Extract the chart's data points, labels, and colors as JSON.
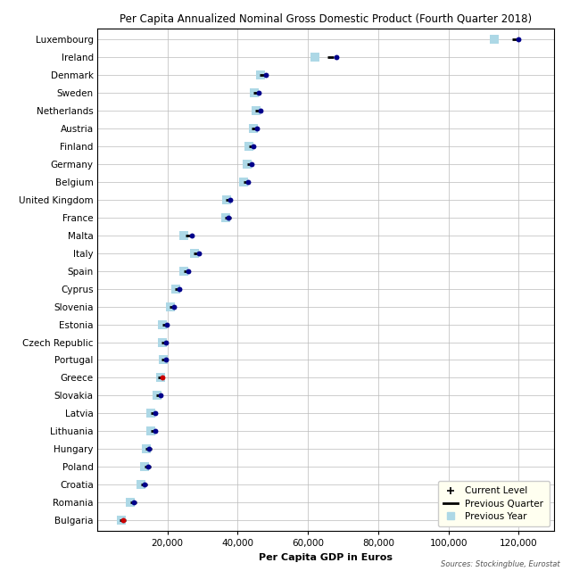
{
  "title": "Per Capita Annualized Nominal Gross Domestic Product (Fourth Quarter 2018)",
  "xlabel": "Per Capita GDP in Euros",
  "source": "Sources: Stockingblue, Eurostat",
  "countries": [
    "Luxembourg",
    "Ireland",
    "Denmark",
    "Sweden",
    "Netherlands",
    "Austria",
    "Finland",
    "Germany",
    "Belgium",
    "United Kingdom",
    "France",
    "Malta",
    "Italy",
    "Spain",
    "Cyprus",
    "Slovenia",
    "Estonia",
    "Czech Republic",
    "Portugal",
    "Greece",
    "Slovakia",
    "Latvia",
    "Lithuania",
    "Hungary",
    "Poland",
    "Croatia",
    "Romania",
    "Bulgaria"
  ],
  "current": [
    120000,
    68000,
    48000,
    46000,
    46500,
    45500,
    44500,
    44000,
    43000,
    38000,
    37500,
    27000,
    29000,
    26000,
    23500,
    22000,
    19800,
    19500,
    19500,
    18500,
    18000,
    16500,
    16500,
    14800,
    14500,
    13500,
    10500,
    7500
  ],
  "prev_quarter": [
    119000,
    66500,
    47200,
    45500,
    46000,
    45000,
    44200,
    43500,
    42500,
    37500,
    37200,
    26200,
    28300,
    25500,
    23000,
    21500,
    19400,
    19200,
    19200,
    18300,
    17700,
    16200,
    16200,
    14600,
    14300,
    13300,
    10300,
    7300
  ],
  "prev_year": [
    113000,
    62000,
    46500,
    44800,
    45200,
    44500,
    43200,
    42800,
    41800,
    36800,
    36500,
    24800,
    27800,
    24800,
    22500,
    20800,
    18500,
    18500,
    18800,
    18000,
    17000,
    15200,
    15200,
    14000,
    13500,
    12500,
    9500,
    7000
  ],
  "dot_colors": [
    "#00008B",
    "#00008B",
    "#00008B",
    "#00008B",
    "#00008B",
    "#00008B",
    "#00008B",
    "#00008B",
    "#00008B",
    "#00008B",
    "#00008B",
    "#00008B",
    "#00008B",
    "#00008B",
    "#00008B",
    "#00008B",
    "#00008B",
    "#00008B",
    "#00008B",
    "#CC0000",
    "#00008B",
    "#00008B",
    "#00008B",
    "#00008B",
    "#00008B",
    "#00008B",
    "#00008B",
    "#CC0000"
  ],
  "bg_color": "#FFFFFF",
  "grid_color": "#BBBBBB",
  "prev_year_color": "#ADD8E6",
  "xlim": [
    0,
    130000
  ],
  "xticks": [
    20000,
    40000,
    60000,
    80000,
    100000,
    120000
  ],
  "xtick_labels": [
    "20,000",
    "40,000",
    "60,000",
    "80,000",
    "100,000",
    "120,000"
  ],
  "legend_facecolor": "#FFFFF0",
  "title_fontsize": 8.5,
  "xlabel_fontsize": 8,
  "ytick_fontsize": 7.5,
  "xtick_fontsize": 7.5
}
